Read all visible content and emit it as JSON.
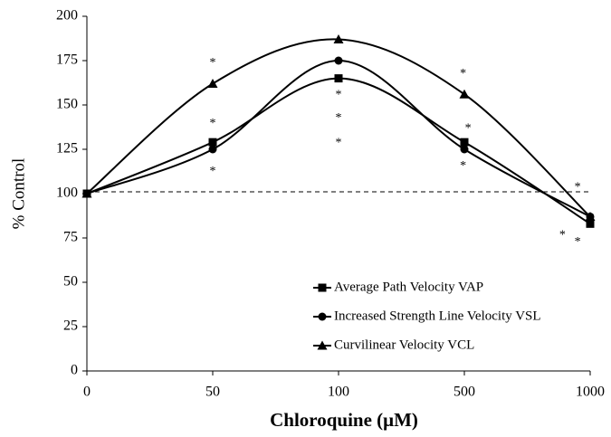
{
  "chart_data": {
    "type": "line",
    "x_label": "Chloroquine (μM)",
    "y_label": "% Control",
    "categories": [
      "0",
      "50",
      "100",
      "500",
      "1000"
    ],
    "series": [
      {
        "name": "Average Path Velocity VAP",
        "marker": "square",
        "color": "#000000",
        "values": [
          100,
          129,
          165,
          129,
          83
        ]
      },
      {
        "name": "Increased Strength Line Velocity VSL",
        "marker": "circle",
        "color": "#000000",
        "values": [
          100,
          125,
          175,
          125,
          87
        ]
      },
      {
        "name": "Curvilinear Velocity VCL",
        "marker": "triangle",
        "color": "#000000",
        "values": [
          100,
          162,
          187,
          156,
          87
        ]
      }
    ],
    "reference_line": 101,
    "annotations": [
      {
        "text": "*",
        "x": 1,
        "y": 175
      },
      {
        "text": "*",
        "x": 1,
        "y": 141
      },
      {
        "text": "*",
        "x": 1,
        "y": 114
      },
      {
        "text": "*",
        "x": 2,
        "y": 157
      },
      {
        "text": "*",
        "x": 2,
        "y": 144
      },
      {
        "text": "*",
        "x": 2,
        "y": 130
      },
      {
        "text": "*",
        "x": 2.99,
        "y": 169
      },
      {
        "text": "*",
        "x": 3.03,
        "y": 138
      },
      {
        "text": "*",
        "x": 2.99,
        "y": 117
      },
      {
        "text": "*",
        "x": 3.9,
        "y": 105
      },
      {
        "text": "*",
        "x": 3.78,
        "y": 78
      },
      {
        "text": "*",
        "x": 3.9,
        "y": 74
      }
    ],
    "ylim": [
      0,
      200
    ],
    "yticks": [
      0,
      25,
      50,
      75,
      100,
      125,
      150,
      175,
      200
    ],
    "legend": "lower right"
  }
}
